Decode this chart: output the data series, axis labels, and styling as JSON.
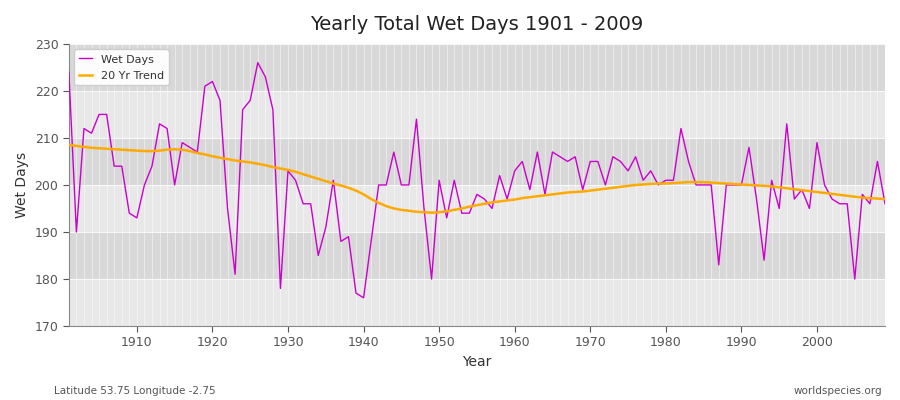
{
  "title": "Yearly Total Wet Days 1901 - 2009",
  "xlabel": "Year",
  "ylabel": "Wet Days",
  "bottom_left_text": "Latitude 53.75 Longitude -2.75",
  "bottom_right_text": "worldspecies.org",
  "ylim": [
    170,
    230
  ],
  "xlim": [
    1901,
    2009
  ],
  "wet_days_color": "#cc00cc",
  "trend_color": "#ffaa00",
  "background_color": "#ffffff",
  "plot_bg_light": "#e8e8e8",
  "plot_bg_dark": "#d8d8d8",
  "legend_labels": [
    "Wet Days",
    "20 Yr Trend"
  ],
  "yticks": [
    170,
    180,
    190,
    200,
    210,
    220,
    230
  ],
  "xticks": [
    1910,
    1920,
    1930,
    1940,
    1950,
    1960,
    1970,
    1980,
    1990,
    2000
  ],
  "years": [
    1901,
    1902,
    1903,
    1904,
    1905,
    1906,
    1907,
    1908,
    1909,
    1910,
    1911,
    1912,
    1913,
    1914,
    1915,
    1916,
    1917,
    1918,
    1919,
    1920,
    1921,
    1922,
    1923,
    1924,
    1925,
    1926,
    1927,
    1928,
    1929,
    1930,
    1931,
    1932,
    1933,
    1934,
    1935,
    1936,
    1937,
    1938,
    1939,
    1940,
    1941,
    1942,
    1943,
    1944,
    1945,
    1946,
    1947,
    1948,
    1949,
    1950,
    1951,
    1952,
    1953,
    1954,
    1955,
    1956,
    1957,
    1958,
    1959,
    1960,
    1961,
    1962,
    1963,
    1964,
    1965,
    1966,
    1967,
    1968,
    1969,
    1970,
    1971,
    1972,
    1973,
    1974,
    1975,
    1976,
    1977,
    1978,
    1979,
    1980,
    1981,
    1982,
    1983,
    1984,
    1985,
    1986,
    1987,
    1988,
    1989,
    1990,
    1991,
    1992,
    1993,
    1994,
    1995,
    1996,
    1997,
    1998,
    1999,
    2000,
    2001,
    2002,
    2003,
    2004,
    2005,
    2006,
    2007,
    2008,
    2009
  ],
  "wet_days": [
    224,
    190,
    212,
    211,
    215,
    215,
    204,
    204,
    194,
    193,
    200,
    204,
    213,
    212,
    200,
    209,
    208,
    207,
    221,
    222,
    218,
    195,
    181,
    216,
    218,
    226,
    223,
    216,
    178,
    203,
    201,
    196,
    196,
    185,
    191,
    201,
    188,
    189,
    177,
    176,
    188,
    200,
    200,
    207,
    200,
    200,
    214,
    195,
    180,
    201,
    193,
    201,
    194,
    194,
    198,
    197,
    195,
    202,
    197,
    203,
    205,
    199,
    207,
    198,
    207,
    206,
    205,
    206,
    199,
    205,
    205,
    200,
    206,
    205,
    203,
    206,
    201,
    203,
    200,
    201,
    201,
    212,
    205,
    200,
    200,
    200,
    183,
    200,
    200,
    200,
    208,
    197,
    184,
    201,
    195,
    213,
    197,
    199,
    195,
    209,
    200,
    197,
    196,
    196,
    180,
    198,
    196,
    205,
    196
  ],
  "trend": [
    208.5,
    208.3,
    208.1,
    207.9,
    207.8,
    207.7,
    207.6,
    207.5,
    207.4,
    207.3,
    207.2,
    207.2,
    207.3,
    207.5,
    207.6,
    207.5,
    207.2,
    206.8,
    206.5,
    206.1,
    205.8,
    205.5,
    205.2,
    205.0,
    204.8,
    204.5,
    204.2,
    203.8,
    203.5,
    203.2,
    202.8,
    202.3,
    201.8,
    201.3,
    200.8,
    200.3,
    199.9,
    199.4,
    198.8,
    198.0,
    197.0,
    196.2,
    195.5,
    195.0,
    194.7,
    194.5,
    194.3,
    194.2,
    194.1,
    194.2,
    194.4,
    194.7,
    195.0,
    195.4,
    195.7,
    196.0,
    196.3,
    196.5,
    196.7,
    196.9,
    197.2,
    197.4,
    197.6,
    197.8,
    198.0,
    198.2,
    198.4,
    198.5,
    198.6,
    198.8,
    199.0,
    199.2,
    199.4,
    199.6,
    199.8,
    200.0,
    200.1,
    200.2,
    200.3,
    200.3,
    200.4,
    200.5,
    200.6,
    200.6,
    200.6,
    200.5,
    200.4,
    200.3,
    200.2,
    200.1,
    200.0,
    199.9,
    199.8,
    199.7,
    199.5,
    199.3,
    199.1,
    198.9,
    198.7,
    198.5,
    198.3,
    198.1,
    197.9,
    197.7,
    197.5,
    197.3,
    197.2,
    197.1,
    197.0
  ]
}
